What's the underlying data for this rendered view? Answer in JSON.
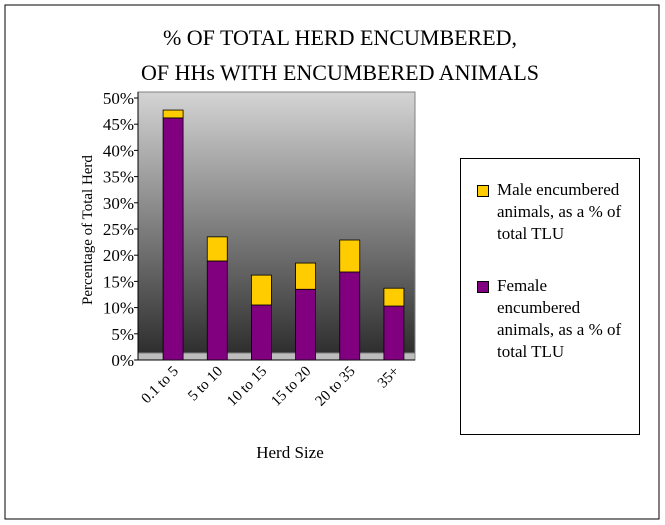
{
  "chart_data": {
    "type": "stacked_bar",
    "title": "% OF TOTAL HERD ENCUMBERED,",
    "subtitle": "OF HHs WITH ENCUMBERED ANIMALS",
    "y_label": "Percentage of Total Herd",
    "x_label": "Herd Size",
    "categories": [
      "0.1 to 5",
      "5 to 10",
      "10 to 15",
      "15 to 20",
      "20 to 35",
      "35+"
    ],
    "series": [
      {
        "name": "Female encumbered animals, as a % of total TLU",
        "color": "#800080",
        "values": [
          46.2,
          18.9,
          10.5,
          13.5,
          16.8,
          10.3
        ]
      },
      {
        "name": "Male encumbered animals, as a % of total TLU",
        "color": "#ffcc00",
        "values": [
          1.5,
          4.6,
          5.7,
          5.0,
          6.1,
          3.4
        ]
      }
    ],
    "ylim": [
      0,
      50
    ],
    "yticks": [
      {
        "value": 0,
        "label": "0%"
      },
      {
        "value": 5,
        "label": "5%"
      },
      {
        "value": 10,
        "label": "10%"
      },
      {
        "value": 15,
        "label": "15%"
      },
      {
        "value": 20,
        "label": "20%"
      },
      {
        "value": 25,
        "label": "25%"
      },
      {
        "value": 30,
        "label": "30%"
      },
      {
        "value": 35,
        "label": "35%"
      },
      {
        "value": 40,
        "label": "40%"
      },
      {
        "value": 45,
        "label": "45%"
      },
      {
        "value": 50,
        "label": "50%"
      }
    ],
    "legend_position": "right"
  }
}
